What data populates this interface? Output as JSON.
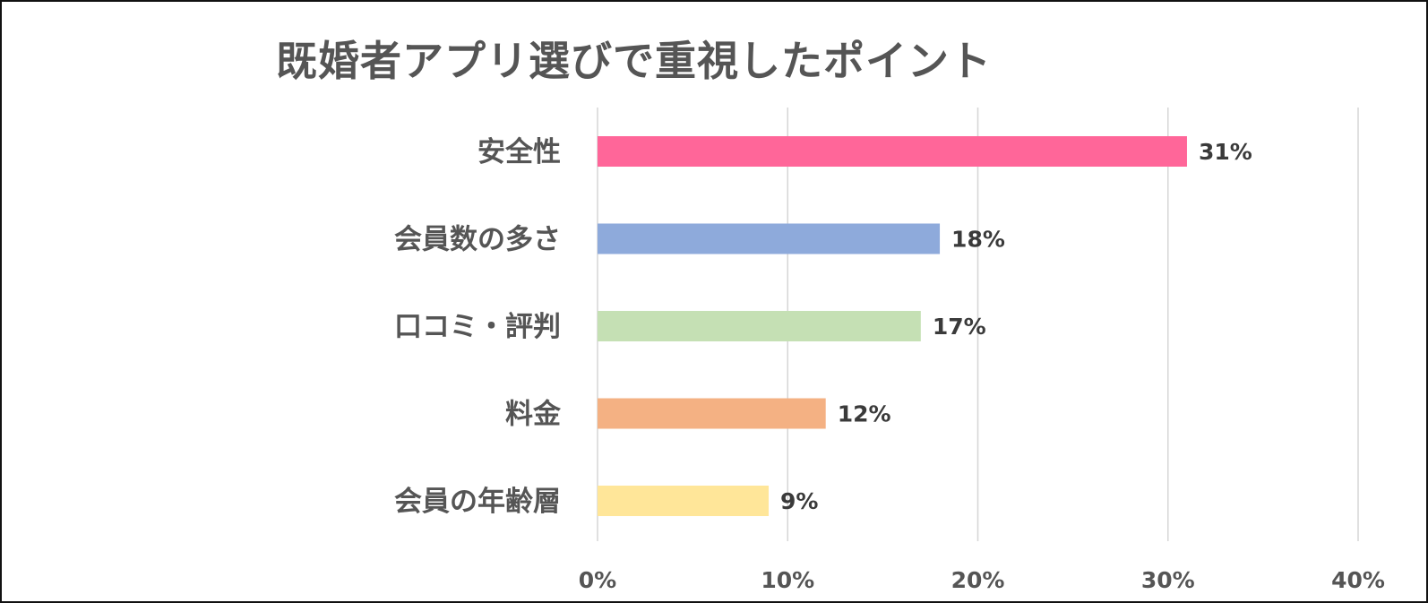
{
  "chart_data": {
    "type": "bar",
    "orientation": "horizontal",
    "title": "既婚者アプリ選びで重視したポイント",
    "categories": [
      "安全性",
      "会員数の多さ",
      "口コミ・評判",
      "料金",
      "会員の年齢層"
    ],
    "values": [
      31,
      18,
      17,
      12,
      9
    ],
    "value_labels": [
      "31%",
      "18%",
      "17%",
      "12%",
      "9%"
    ],
    "colors": [
      "#ff6699",
      "#8eaadb",
      "#c5e0b4",
      "#f4b183",
      "#ffe699"
    ],
    "xlim": [
      0,
      40
    ],
    "xticks": [
      0,
      10,
      20,
      30,
      40
    ],
    "xtick_labels": [
      "0%",
      "10%",
      "20%",
      "30%",
      "40%"
    ],
    "grid": true,
    "legend": "none"
  }
}
